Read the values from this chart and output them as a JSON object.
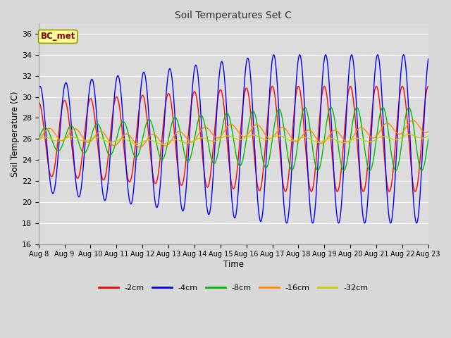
{
  "title": "Soil Temperatures Set C",
  "xlabel": "Time",
  "ylabel": "Soil Temperature (C)",
  "ylim": [
    16,
    37
  ],
  "yticks": [
    16,
    18,
    20,
    22,
    24,
    26,
    28,
    30,
    32,
    34,
    36
  ],
  "date_labels": [
    "Aug 8",
    "Aug 9",
    "Aug 10",
    "Aug 11",
    "Aug 12",
    "Aug 13",
    "Aug 14",
    "Aug 15",
    "Aug 16",
    "Aug 17",
    "Aug 18",
    "Aug 19",
    "Aug 20",
    "Aug 21",
    "Aug 22",
    "Aug 23"
  ],
  "annotation": "BC_met",
  "annotation_color": "#8B0000",
  "annotation_bg": "#FFFF99",
  "annotation_border": "#999900",
  "colors": {
    "-2cm": "#FF0000",
    "-4cm": "#0000FF",
    "-8cm": "#00BB00",
    "-16cm": "#FF8800",
    "-32cm": "#CCCC00"
  },
  "legend_labels": [
    "-2cm",
    "-4cm",
    "-8cm",
    "-16cm",
    "-32cm"
  ],
  "fig_bg": "#D8D8D8",
  "plot_bg": "#DCDCDC",
  "grid_color": "#FFFFFF"
}
